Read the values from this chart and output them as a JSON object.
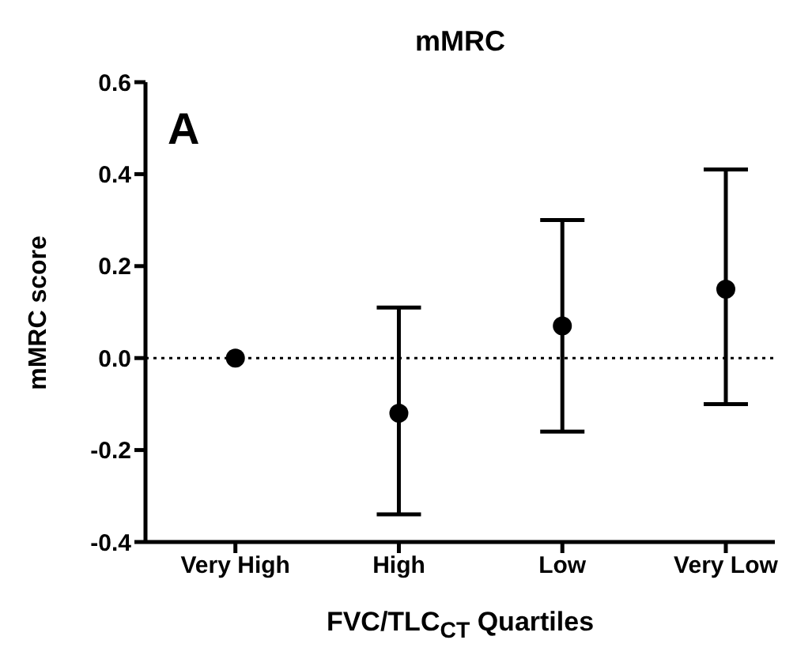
{
  "chart_data": {
    "type": "scatter",
    "title": "mMRC",
    "xlabel": "FVC/TLC$_{CT}$ Quartiles",
    "ylabel": "mMRC score",
    "annotations": [
      "A"
    ],
    "categories": [
      "Very High",
      "High",
      "Low",
      "Very Low"
    ],
    "series": [
      {
        "color": "#000000",
        "values": [
          0,
          -0.12,
          0.07,
          0.15
        ],
        "errors": [
          null,
          [
            -0.34,
            0.11
          ],
          [
            -0.16,
            0.3
          ],
          [
            -0.1,
            0.41
          ]
        ]
      }
    ],
    "ylim": [
      -0.4,
      0.6
    ],
    "yticks": [
      -0.4,
      -0.2,
      {
        "value": 0,
        "label": "0.0"
      },
      0.2,
      0.4,
      0.6
    ],
    "ref_lines": [
      {
        "axis": "y",
        "value": 0,
        "line_style": "dotted",
        "color": "#000000"
      }
    ],
    "marker": "circle",
    "grid": false
  }
}
